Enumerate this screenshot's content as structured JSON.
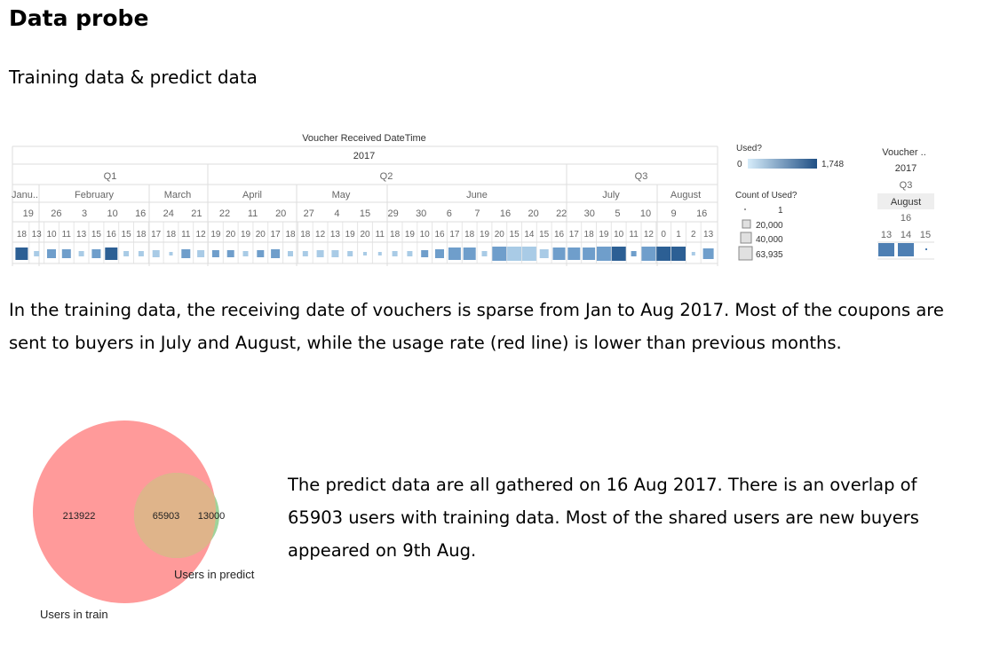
{
  "heading": "Data probe",
  "subheading": "Training data & predict data",
  "paragraph1": "In the training data, the receiving date of vouchers is sparse from Jan to Aug 2017. Most of the coupons are sent to buyers in July and August, while the usage rate (red line) is lower than previous months.",
  "paragraph2": "The predict data are all gathered on 16 Aug 2017. There is an overlap of 65903 users with training data. Most of the shared users are new buyers appeared on 9th Aug.",
  "tableau": {
    "header_title": "Voucher Received DateTime",
    "year": "2017",
    "quarters": [
      "Q1",
      "Q2",
      "Q3"
    ],
    "months": [
      "Janu..",
      "February",
      "March",
      "April",
      "May",
      "June",
      "July",
      "August"
    ],
    "weeks": [
      "19",
      "26",
      "3",
      "10",
      "16",
      "24",
      "21",
      "22",
      "11",
      "20",
      "27",
      "4",
      "15",
      "29",
      "30",
      "6",
      "7",
      "16",
      "20",
      "22",
      "30",
      "5",
      "10",
      "9",
      "16"
    ],
    "days": [
      "18",
      "13",
      "10",
      "11",
      "13",
      "15",
      "16",
      "15",
      "18",
      "17",
      "18",
      "11",
      "12",
      "19",
      "20",
      "19",
      "20",
      "17",
      "18",
      "18",
      "12",
      "13",
      "19",
      "20",
      "11",
      "18",
      "19",
      "10",
      "16",
      "17",
      "18",
      "19",
      "20",
      "15",
      "14",
      "15",
      "16",
      "17",
      "18",
      "19",
      "10",
      "11",
      "12",
      "0",
      "1",
      "2",
      "13"
    ],
    "legend": {
      "used_title": "Used?",
      "used_min": "0",
      "used_max": "1,748",
      "count_title": "Count of Used?",
      "sizes": [
        "1",
        "20,000",
        "40,000",
        "63,935"
      ]
    },
    "predict_panel": {
      "title": "Voucher ..",
      "year": "2017",
      "quarter": "Q3",
      "month": "August",
      "week": "16",
      "days": [
        "13",
        "14",
        "15"
      ]
    },
    "colors": {
      "light": "#a9cbe6",
      "mid": "#6f9ecb",
      "dark": "#2c5f94"
    }
  },
  "venn": {
    "train_only": "213922",
    "overlap": "65903",
    "predict_only": "13000",
    "label_train": "Users in train",
    "label_predict": "Users in predict",
    "colors": {
      "train": "#ff9a9a",
      "predict": "#9fd49a",
      "overlap": "#dfb48a"
    }
  }
}
